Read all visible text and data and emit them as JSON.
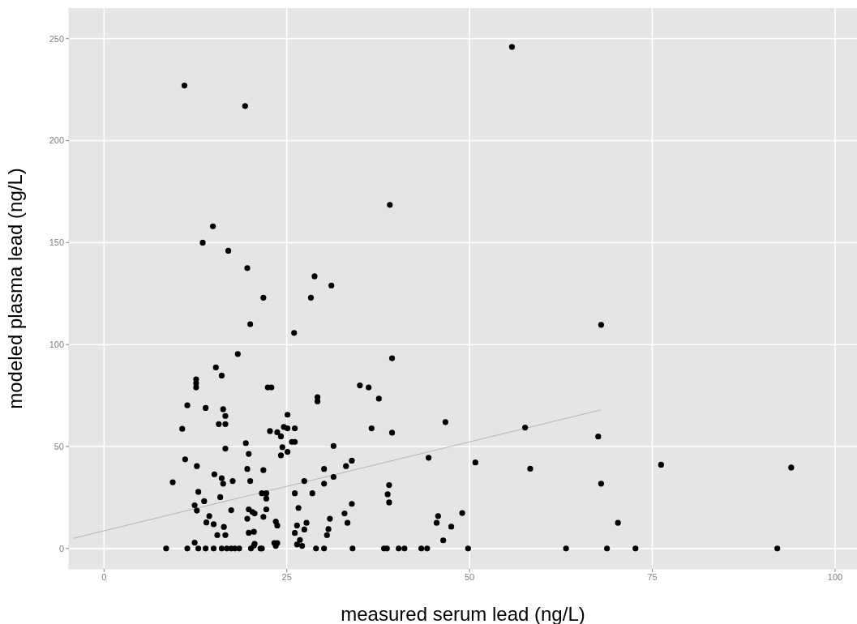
{
  "chart_data": {
    "type": "scatter",
    "xlabel": "measured serum lead (ng/L)",
    "ylabel": "modeled plasma lead (ng/L)",
    "xlim": [
      -4.8,
      103
    ],
    "ylim": [
      -10,
      265
    ],
    "xticks": [
      0,
      25,
      50,
      75,
      100
    ],
    "yticks": [
      0,
      50,
      100,
      150,
      200,
      250
    ],
    "grid": true,
    "series": [
      {
        "color": "#000000",
        "marker": "circle",
        "x": [
          11.0,
          19.3,
          55.8,
          39.1,
          14.9,
          13.5,
          17.0,
          19.6,
          28.8,
          31.1,
          28.3,
          21.8,
          20.0,
          26.0,
          18.3,
          15.3,
          16.1,
          12.6,
          12.6,
          12.6,
          22.4,
          22.9,
          35.0,
          36.2,
          37.6,
          39.4,
          68.0,
          11.4,
          13.9,
          16.3,
          16.6,
          15.7,
          16.6,
          10.7,
          19.4,
          16.6,
          19.8,
          11.1,
          12.7,
          19.6,
          21.8,
          15.1,
          16.1,
          17.6,
          20.0,
          9.4,
          16.3,
          12.9,
          21.6,
          22.2,
          13.7,
          15.9,
          22.2,
          12.4,
          12.7,
          17.4,
          19.8,
          20.3,
          20.6,
          22.2,
          21.8,
          19.6,
          14.4,
          14.0,
          15.0,
          16.4,
          15.5,
          16.6,
          19.8,
          20.5,
          12.4,
          20.6,
          20.5,
          8.5,
          11.4,
          12.9,
          13.9,
          15.0,
          16.1,
          16.8,
          17.4,
          17.9,
          18.5,
          20.1,
          21.4,
          29.2,
          29.2,
          25.1,
          22.7,
          23.7,
          24.2,
          24.6,
          25.1,
          26.1,
          36.6,
          25.7,
          26.1,
          31.4,
          24.4,
          24.2,
          25.1,
          33.9,
          33.1,
          30.1,
          31.4,
          27.4,
          30.1,
          26.1,
          28.5,
          26.6,
          33.9,
          32.9,
          30.9,
          33.3,
          23.5,
          23.7,
          26.4,
          27.7,
          27.4,
          26.1,
          30.7,
          30.5,
          23.3,
          23.7,
          23.5,
          26.4,
          26.8,
          27.1,
          21.6,
          29.0,
          30.1,
          34.0,
          38.3,
          38.7,
          46.7,
          39.4,
          57.6,
          67.6,
          44.4,
          50.8,
          58.3,
          76.2,
          94.0,
          68.0,
          39.0,
          38.8,
          39.0,
          45.7,
          45.5,
          49.0,
          47.5,
          46.4,
          70.3,
          40.3,
          41.1,
          43.4,
          44.2,
          49.8,
          63.2,
          68.8,
          72.7,
          92.1
        ],
        "values": [
          227,
          217,
          246,
          168.5,
          158,
          150,
          146,
          137.5,
          133.5,
          129,
          123,
          123,
          110,
          105.7,
          95.4,
          88.8,
          84.8,
          83,
          81,
          79,
          79,
          79,
          80,
          79,
          73.5,
          93.3,
          109.7,
          70.2,
          68.9,
          68.3,
          65,
          61,
          61,
          58.7,
          51.7,
          49,
          46.4,
          43.7,
          40.4,
          39,
          38.4,
          36.4,
          34.5,
          33.1,
          33.1,
          32.5,
          31.8,
          27.8,
          27.1,
          27.1,
          23.2,
          25.2,
          24.5,
          21.2,
          18.6,
          18.8,
          19.2,
          17.9,
          17.2,
          19.2,
          15.5,
          14.6,
          15.9,
          12.8,
          11.9,
          10.6,
          6.6,
          6.6,
          7.7,
          8.2,
          2.9,
          2.3,
          1.4,
          0,
          0,
          0,
          0,
          0,
          0,
          0,
          0,
          0,
          0,
          0,
          0,
          74.2,
          72.2,
          65.6,
          57.6,
          57,
          55,
          59.6,
          58.9,
          58.9,
          58.9,
          52.3,
          52.3,
          50.3,
          49.7,
          45.7,
          47.4,
          43.1,
          40.4,
          39,
          35.1,
          33.1,
          31.8,
          27.1,
          27.1,
          19.9,
          21.9,
          17.2,
          14.6,
          12.6,
          13.2,
          11.3,
          11.3,
          12.6,
          9.3,
          7.6,
          9.5,
          6.6,
          2.7,
          2.7,
          1.3,
          2,
          4.2,
          1.3,
          0,
          0,
          0,
          0,
          0,
          0,
          62,
          56.8,
          59.3,
          54.9,
          44.5,
          42.2,
          39.1,
          41.1,
          39.7,
          31.8,
          31.1,
          26.6,
          22.6,
          15.9,
          12.6,
          17.4,
          10.7,
          4.0,
          12.6,
          0,
          0,
          0,
          0,
          0,
          0,
          0,
          0,
          0
        ]
      },
      {
        "type": "line",
        "marker": "none",
        "color": "#b4b4b4",
        "x": [
          -4.2,
          68
        ],
        "values": [
          5,
          68
        ]
      }
    ]
  }
}
